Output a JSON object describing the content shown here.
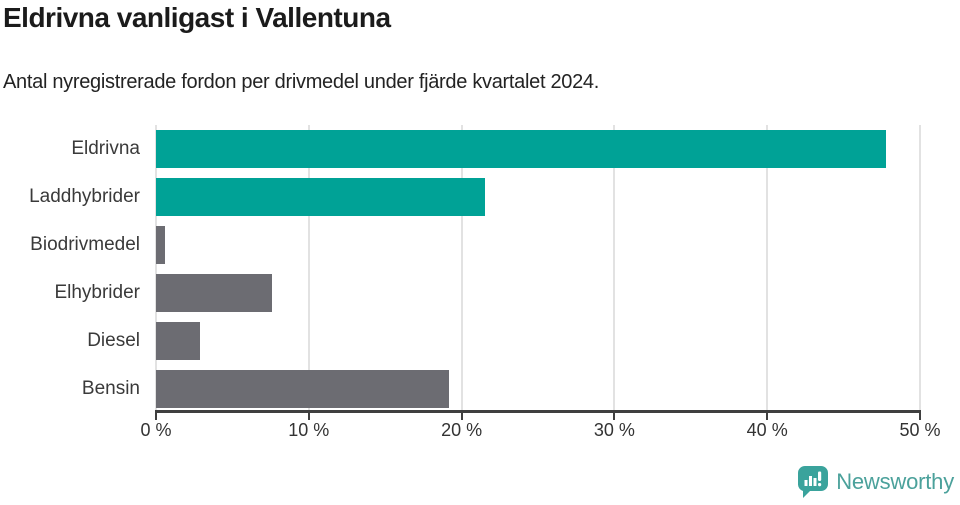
{
  "chart_data": {
    "type": "bar",
    "orientation": "horizontal",
    "title": "Eldrivna vanligast i Vallentuna",
    "subtitle": "Antal nyregistrerade fordon per drivmedel under fjärde kvartalet 2024.",
    "categories": [
      "Eldrivna",
      "Laddhybrider",
      "Biodrivmedel",
      "Elhybrider",
      "Diesel",
      "Bensin"
    ],
    "values": [
      47.8,
      21.5,
      0.6,
      7.6,
      2.9,
      19.2
    ],
    "unit": "%",
    "xlim": [
      0,
      50
    ],
    "x_tick_values": [
      0,
      10,
      20,
      30,
      40,
      50
    ],
    "x_tick_labels": [
      "0 %",
      "10 %",
      "20 %",
      "30 %",
      "40 %",
      "50 %"
    ],
    "bar_colors": [
      "#00a296",
      "#00a296",
      "#6c6c72",
      "#6c6c72",
      "#6c6c72",
      "#6c6c72"
    ],
    "grid": true,
    "legend": false,
    "ylabel": "",
    "xlabel": ""
  },
  "colors": {
    "accent_teal": "#00a296",
    "neutral_gray": "#6c6c72",
    "gridline": "#e2e2e2",
    "axis": "#3f3f3f",
    "brand_teal": "#4ba19b"
  },
  "footer": {
    "brand": "Newsworthy"
  }
}
